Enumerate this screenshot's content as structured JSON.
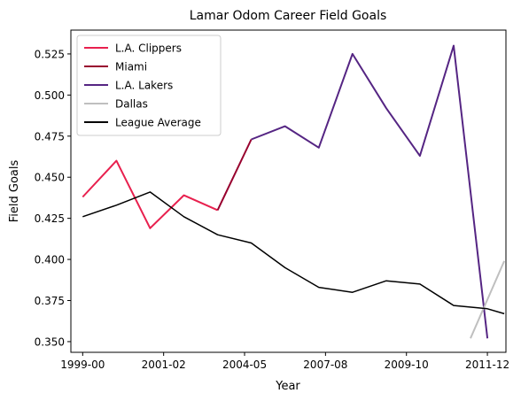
{
  "chart_data": {
    "type": "line",
    "title": "Lamar Odom Career Field Goals",
    "xlabel": "Year",
    "ylabel": "Field Goals",
    "x_ticks": [
      "1999-00",
      "2001-02",
      "2004-05",
      "2007-08",
      "2009-10",
      "2011-12"
    ],
    "x_tick_positions": [
      0,
      2.4,
      4.8,
      7.2,
      9.6,
      12
    ],
    "xlim": [
      -0.35,
      12.55
    ],
    "ylim": [
      0.3435,
      0.5395
    ],
    "y_ticks": [
      0.35,
      0.375,
      0.4,
      0.425,
      0.45,
      0.475,
      0.5,
      0.525
    ],
    "y_tick_labels": [
      "0.350",
      "0.375",
      "0.400",
      "0.425",
      "0.450",
      "0.475",
      "0.500",
      "0.525"
    ],
    "grid": false,
    "legend_position": "top-left",
    "series": [
      {
        "name": "L.A. Clippers",
        "color": "#e8204e",
        "x": [
          0,
          1,
          2,
          3,
          4
        ],
        "y": [
          0.438,
          0.46,
          0.419,
          0.439,
          0.43
        ]
      },
      {
        "name": "Miami",
        "color": "#98002e",
        "x": [
          4,
          5
        ],
        "y": [
          0.43,
          0.473
        ]
      },
      {
        "name": "L.A. Lakers",
        "color": "#552583",
        "x": [
          5,
          6,
          7,
          8,
          9,
          10,
          11,
          12
        ],
        "y": [
          0.473,
          0.481,
          0.468,
          0.525,
          0.492,
          0.463,
          0.53,
          0.352
        ]
      },
      {
        "name": "Dallas",
        "color": "#bfbfbf",
        "x": [
          11.5,
          12.5
        ],
        "y": [
          0.352,
          0.399
        ]
      },
      {
        "name": "League Average",
        "color": "#000000",
        "x": [
          0,
          1,
          2,
          3,
          4,
          5,
          6,
          7,
          8,
          9,
          10,
          11,
          12,
          12.5
        ],
        "y": [
          0.426,
          0.433,
          0.441,
          0.426,
          0.415,
          0.41,
          0.395,
          0.383,
          0.38,
          0.387,
          0.385,
          0.372,
          0.37,
          0.367
        ]
      }
    ]
  }
}
